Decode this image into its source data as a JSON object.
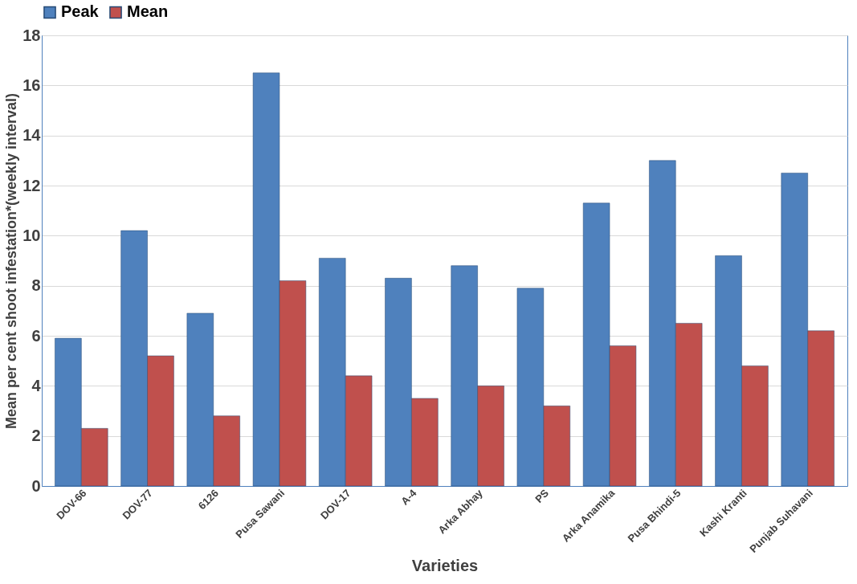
{
  "chart_data": {
    "type": "bar",
    "xlabel": "Varieties",
    "ylabel": "Mean per cent shoot infestation*(weekly interval)",
    "categories": [
      "DOV-66",
      "DOV-77",
      "6126",
      "Pusa Sawani",
      "DOV-17",
      "A-4",
      "Arka Abhay",
      "PS",
      "Arka Anamika",
      "Pusa Bhindi-5",
      "Kashi Kranti",
      "Punjab Suhavani"
    ],
    "series": [
      {
        "name": "Peak",
        "color": "#4f81bd",
        "values": [
          5.9,
          10.2,
          6.9,
          16.5,
          9.1,
          8.3,
          8.8,
          7.9,
          11.3,
          13.0,
          9.2,
          12.5
        ]
      },
      {
        "name": "Mean",
        "color": "#c0504d",
        "values": [
          2.3,
          5.2,
          2.8,
          8.2,
          4.4,
          3.5,
          4.0,
          3.2,
          5.6,
          6.5,
          4.8,
          6.2
        ]
      }
    ],
    "ylim": [
      0,
      18
    ],
    "yticks": [
      0,
      2,
      4,
      6,
      8,
      10,
      12,
      14,
      16,
      18
    ],
    "grid": "y",
    "legend": "top"
  }
}
